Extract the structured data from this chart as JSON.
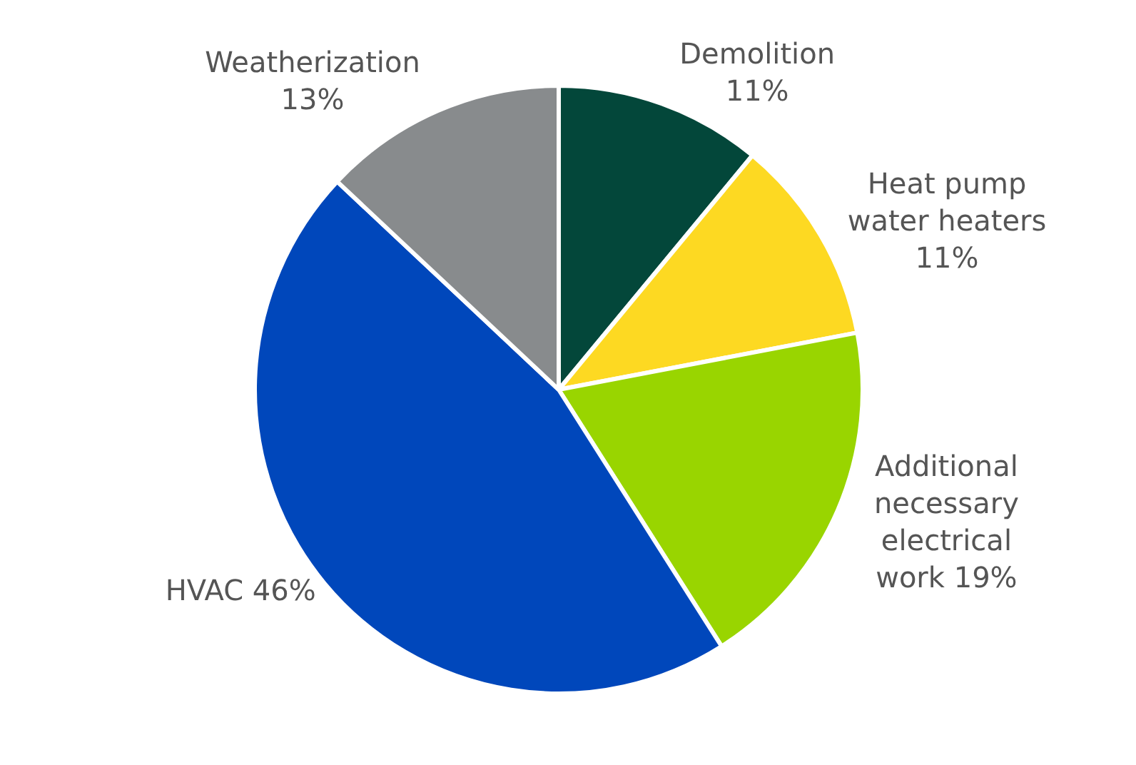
{
  "chart_data": {
    "type": "pie",
    "categories": [
      "Demolition",
      "Heat pump water heaters",
      "Additional necessary electrical work",
      "HVAC",
      "Weatherization"
    ],
    "values": [
      11,
      11,
      19,
      46,
      13
    ],
    "colors": [
      "#03473a",
      "#fdd922",
      "#99d500",
      "#0047bb",
      "#888b8d"
    ],
    "value_labels": [
      "11%",
      "11%",
      "19%",
      "46%",
      "13%"
    ],
    "legend": false
  }
}
